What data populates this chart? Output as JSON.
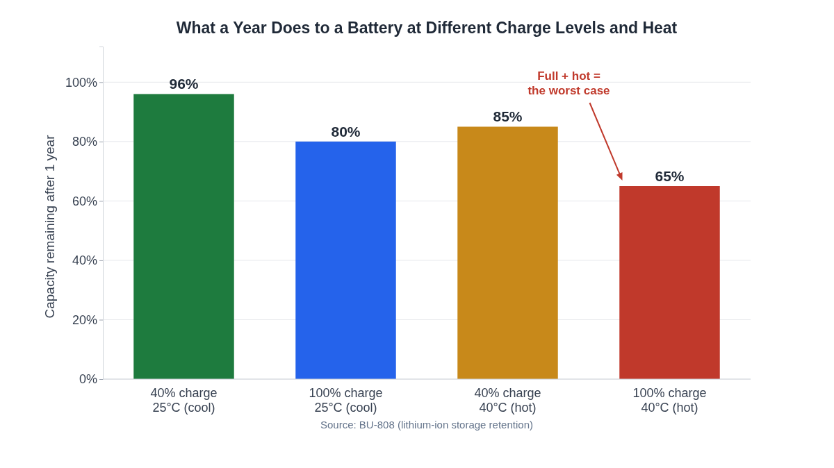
{
  "chart_data": {
    "type": "bar",
    "title": "What a Year Does to a Battery at Different Charge Levels and Heat",
    "categories": [
      "40% charge\n25°C (cool)",
      "100% charge\n25°C (cool)",
      "40% charge\n40°C (hot)",
      "100% charge\n40°C (hot)"
    ],
    "values": [
      96,
      80,
      85,
      65
    ],
    "colors": [
      "#1e7b3e",
      "#2563eb",
      "#c8891a",
      "#c0392b"
    ],
    "ylabel": "Capacity remaining after 1 year",
    "ylim": [
      0,
      112
    ],
    "yticks": [
      {
        "value": 0,
        "label": "0%"
      },
      {
        "value": 20,
        "label": "20%"
      },
      {
        "value": 40,
        "label": "40%"
      },
      {
        "value": 60,
        "label": "60%"
      },
      {
        "value": 80,
        "label": "80%"
      },
      {
        "value": 100,
        "label": "100%"
      }
    ],
    "grid": "y",
    "value_labels": [
      "96%",
      "80%",
      "85%",
      "65%"
    ],
    "annotations": [
      "Full + hot =\nthe worst case",
      "Source: BU-808 (lithium-ion storage retention)"
    ]
  }
}
